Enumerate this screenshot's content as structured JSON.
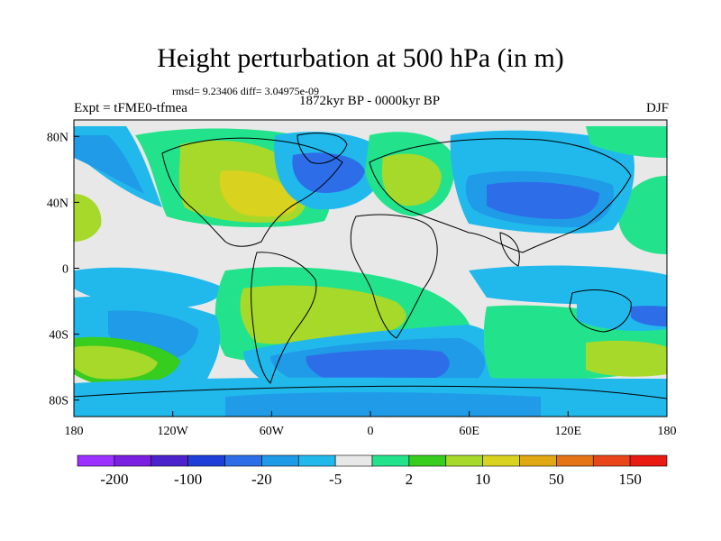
{
  "title": "Height perturbation at 500 hPa (in m)",
  "stats": "rmsd= 9.23406 diff= 3.04975e-09",
  "experiment": "Expt = tFME0-tfmea",
  "period": "1872kyr BP - 0000kyr BP",
  "season": "DJF",
  "axes": {
    "lon_ticks": [
      "180",
      "120W",
      "60W",
      "0",
      "60E",
      "120E",
      "180"
    ],
    "lat_ticks": [
      "80N",
      "40N",
      "0",
      "40S",
      "80S"
    ]
  },
  "colorbar": {
    "colors": [
      "#9b30ff",
      "#7b1fe0",
      "#4b22cc",
      "#1f3fd8",
      "#2d6ee8",
      "#1f9be8",
      "#21b9ec",
      "#e8e8e8",
      "#22e38c",
      "#36cd1e",
      "#a6d92a",
      "#d9d21e",
      "#e0a812",
      "#e37315",
      "#e8451a",
      "#e81a12"
    ],
    "labels": [
      "-200",
      "-100",
      "-20",
      "-5",
      "2",
      "10",
      "50",
      "150"
    ]
  },
  "map_colors": {
    "background": "#e8e8e8",
    "blue_light": "#21b9ec",
    "blue_mid": "#1f9be8",
    "blue_dark": "#2d6ee8",
    "blue_deep": "#1f3fd8",
    "green_light": "#22e38c",
    "green": "#36cd1e",
    "yellow_green": "#a6d92a",
    "yellow": "#d9d21e"
  }
}
